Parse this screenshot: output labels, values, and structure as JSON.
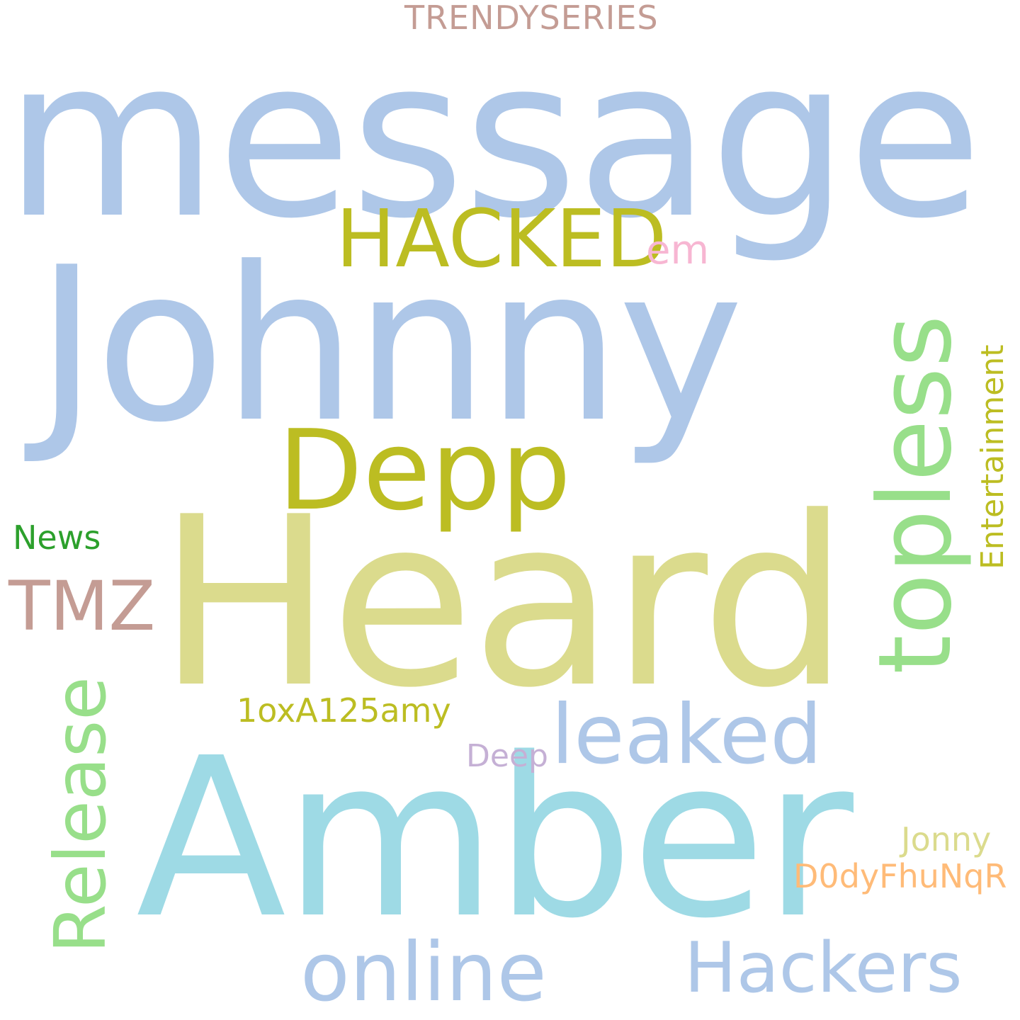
{
  "words": {
    "trendyseries": "TRENDYSERIES",
    "message": "message",
    "hacked": "HACKED",
    "em": "em",
    "johnny": "Johnny",
    "depp": "Depp",
    "topless": "topless",
    "entertainment": "Entertainment",
    "news": "News",
    "tmz": "TMZ",
    "heard": "Heard",
    "release": "Release",
    "oxa": "1oxA125amy",
    "leaked": "leaked",
    "deep": "Deep",
    "amber": "Amber",
    "jonny": "Jonny",
    "dody": "D0dyFhuNqR",
    "online": "online",
    "hackers": "Hackers"
  },
  "colors": {
    "background": "#ffffff",
    "light_blue": "#aec7e8",
    "cyan": "#9edae5",
    "olive": "#bcbd22",
    "light_olive": "#dbdb8d",
    "light_green": "#98df8a",
    "green": "#2ca02c",
    "pink": "#f7b6d2",
    "brown": "#c49c94",
    "lavender": "#c5b0d5",
    "orange": "#ffbb78"
  }
}
